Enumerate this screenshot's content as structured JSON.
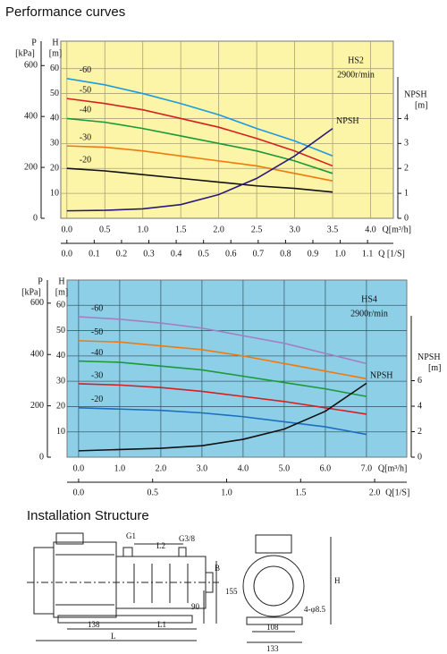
{
  "title": "Performance curves",
  "chart_data": [
    {
      "type": "line",
      "background": "#fcf4a6",
      "grid": true,
      "grid_color": "#a8a27a",
      "annotations": {
        "model": "HS2",
        "speed": "2900r/min"
      },
      "axis_labels": {
        "p": "P",
        "p_unit": "[kPa]",
        "h": "H",
        "h_unit": "[m]",
        "npsh": "NPSH",
        "npsh_unit": "[m]",
        "q": "Q[m³/h]",
        "q2": "Q [1/S]"
      },
      "x": [
        0,
        0.5,
        1,
        1.5,
        2,
        2.5,
        3,
        3.5
      ],
      "xlim": [
        -0.08,
        4.3
      ],
      "xticks": [
        {
          "value": 0,
          "label": "0.0"
        },
        0.5,
        {
          "value": 1,
          "label": "1.0"
        },
        1.5,
        {
          "value": 2,
          "label": "2.0"
        },
        2.5,
        {
          "value": 3,
          "label": "3.0"
        },
        3.5,
        {
          "value": 4,
          "label": "4.0"
        }
      ],
      "x2lim": [
        -0.0222,
        1.1944
      ],
      "x2ticks": [
        {
          "value": 0,
          "label": "0.0"
        },
        0.1,
        0.2,
        0.3,
        0.4,
        0.5,
        0.6,
        0.7,
        0.8,
        0.9,
        {
          "value": 1,
          "label": "1.0"
        },
        1.1
      ],
      "ylim": [
        0,
        71
      ],
      "yticks": [
        10,
        20,
        30,
        40,
        50,
        60
      ],
      "y3lim": [
        0,
        696
      ],
      "y3ticks": [
        0,
        200,
        400,
        600
      ],
      "y2lim": [
        0,
        7.1
      ],
      "y2ticks": [
        0,
        1,
        2,
        3,
        4
      ],
      "series": [
        {
          "name": "-60",
          "color": "#1e9be0",
          "values": [
            56,
            53.5,
            50,
            46,
            41.5,
            36,
            31,
            25
          ]
        },
        {
          "name": "-50",
          "color": "#d62020",
          "values": [
            48,
            46,
            43.5,
            40,
            36.5,
            32,
            27,
            21
          ]
        },
        {
          "name": "-40",
          "color": "#1a9a3a",
          "values": [
            40,
            38.5,
            36,
            33,
            30,
            27,
            23,
            18
          ]
        },
        {
          "name": "-30",
          "color": "#f07a10",
          "values": [
            29,
            28.5,
            27,
            25,
            23,
            21,
            18,
            15
          ]
        },
        {
          "name": "-20",
          "color": "#111111",
          "values": [
            20,
            19,
            17.5,
            16,
            14.5,
            13,
            12,
            10.5
          ]
        },
        {
          "name": "NPSH",
          "color": "#2a1a7a",
          "axis": "y2",
          "values": [
            0.3,
            0.32,
            0.38,
            0.55,
            0.95,
            1.6,
            2.5,
            3.6
          ]
        }
      ]
    },
    {
      "type": "line",
      "background": "#8ecfe8",
      "grid": true,
      "grid_color": "#3d5f6e",
      "annotations": {
        "model": "HS4",
        "speed": "2900r/min"
      },
      "axis_labels": {
        "p": "P",
        "p_unit": "[kPa]",
        "h": "H",
        "h_unit": "[m]",
        "npsh": "NPSH",
        "npsh_unit": "[m]",
        "q": "Q[m³/h]",
        "q2": "Q[1/S]"
      },
      "x": [
        0,
        1,
        2,
        3,
        4,
        5,
        6,
        7
      ],
      "xlim": [
        -0.28,
        7.98
      ],
      "xticks": [
        {
          "value": 0,
          "label": "0.0"
        },
        {
          "value": 1,
          "label": "1.0"
        },
        {
          "value": 2,
          "label": "2.0"
        },
        {
          "value": 3,
          "label": "3.0"
        },
        {
          "value": 4,
          "label": "4.0"
        },
        {
          "value": 5,
          "label": "5.0"
        },
        {
          "value": 6,
          "label": "6.0"
        },
        {
          "value": 7,
          "label": "7.0"
        }
      ],
      "x2lim": [
        -0.078,
        2.217
      ],
      "x2ticks": [
        {
          "value": 0,
          "label": "0.0"
        },
        0.5,
        {
          "value": 1,
          "label": "1.0"
        },
        1.5,
        {
          "value": 2,
          "label": "2.0"
        }
      ],
      "ylim": [
        0,
        70
      ],
      "yticks": [
        10,
        20,
        30,
        40,
        50,
        60
      ],
      "y3lim": [
        0,
        690
      ],
      "y3ticks": [
        0,
        200,
        400,
        600
      ],
      "y2lim": [
        0,
        13.9
      ],
      "y2ticks": [
        0,
        2,
        4,
        6
      ],
      "series": [
        {
          "name": "-60",
          "color": "#a080c0",
          "values": [
            55.5,
            54.5,
            53,
            51,
            48,
            45,
            41,
            37
          ]
        },
        {
          "name": "-50",
          "color": "#f07a10",
          "values": [
            46,
            45.5,
            44,
            42.5,
            40,
            37,
            34,
            31
          ]
        },
        {
          "name": "-40",
          "color": "#1a9a3a",
          "values": [
            38,
            37.5,
            36,
            34.5,
            32,
            29.5,
            27,
            24
          ]
        },
        {
          "name": "-30",
          "color": "#d62020",
          "values": [
            29,
            28.5,
            27.5,
            26,
            24,
            22,
            19.5,
            17
          ]
        },
        {
          "name": "-20",
          "color": "#1b6fc0",
          "values": [
            19.5,
            19,
            18.5,
            17.5,
            16,
            14,
            12,
            9
          ]
        },
        {
          "name": "NPSH",
          "color": "#111111",
          "axis": "y2",
          "values": [
            0.5,
            0.6,
            0.7,
            0.9,
            1.4,
            2.2,
            3.6,
            5.8
          ]
        }
      ]
    }
  ],
  "installation": {
    "title": "Installation Structure",
    "labels": {
      "g1": "G1",
      "l2": "L2",
      "g38": "G3/8",
      "b": "B",
      "d155": "155",
      "d90": "90",
      "d138": "138",
      "l1": "L1",
      "l": "L",
      "h": "H",
      "d108": "108",
      "d133": "133",
      "holes": "4-φ8.5"
    }
  }
}
